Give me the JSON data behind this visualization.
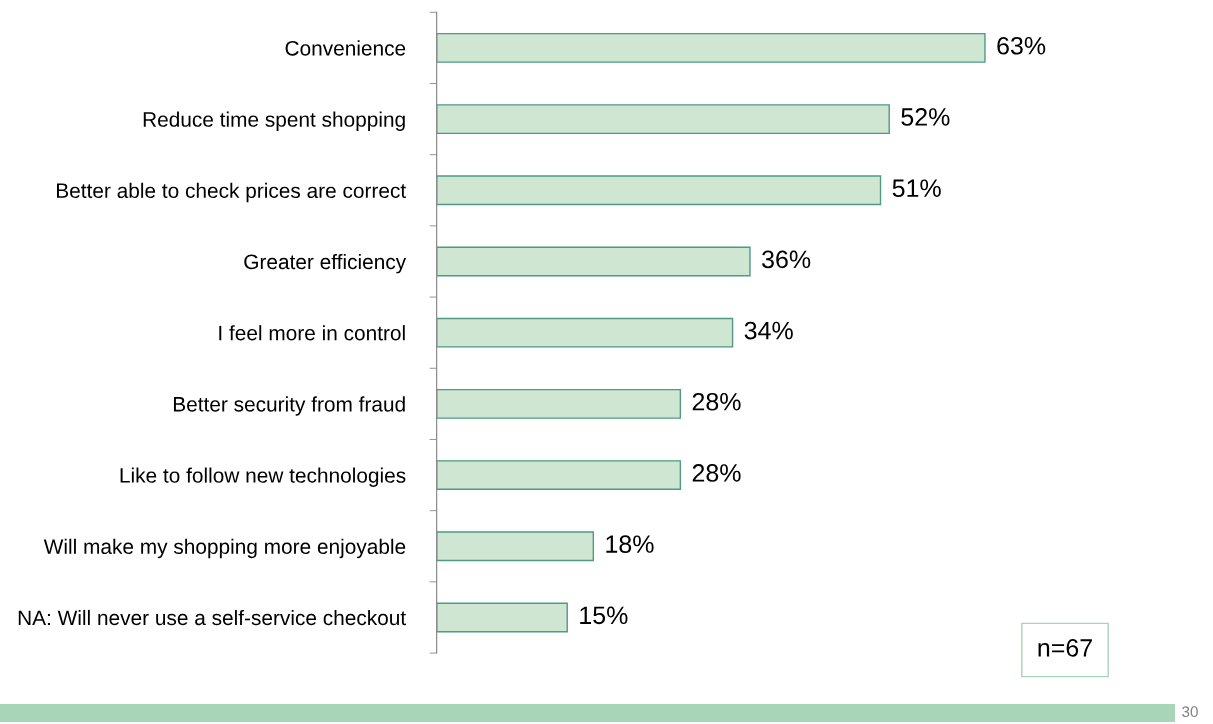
{
  "chart_data": {
    "type": "bar",
    "orientation": "horizontal",
    "categories": [
      "Convenience",
      "Reduce time spent shopping",
      "Better able to check prices are correct",
      "Greater efficiency",
      "I feel more in control",
      "Better security from fraud",
      "Like to follow new technologies",
      "Will make my shopping more enjoyable",
      "NA: Will never use a self-service checkout"
    ],
    "values": [
      63,
      52,
      51,
      36,
      34,
      28,
      28,
      18,
      15
    ],
    "value_labels": [
      "63%",
      "52%",
      "51%",
      "36%",
      "34%",
      "28%",
      "28%",
      "18%",
      "15%"
    ],
    "color": "#cfe6d3",
    "annotations": [
      "n=67",
      "30"
    ],
    "grid": false,
    "legend": false,
    "tick_labels": "y"
  }
}
